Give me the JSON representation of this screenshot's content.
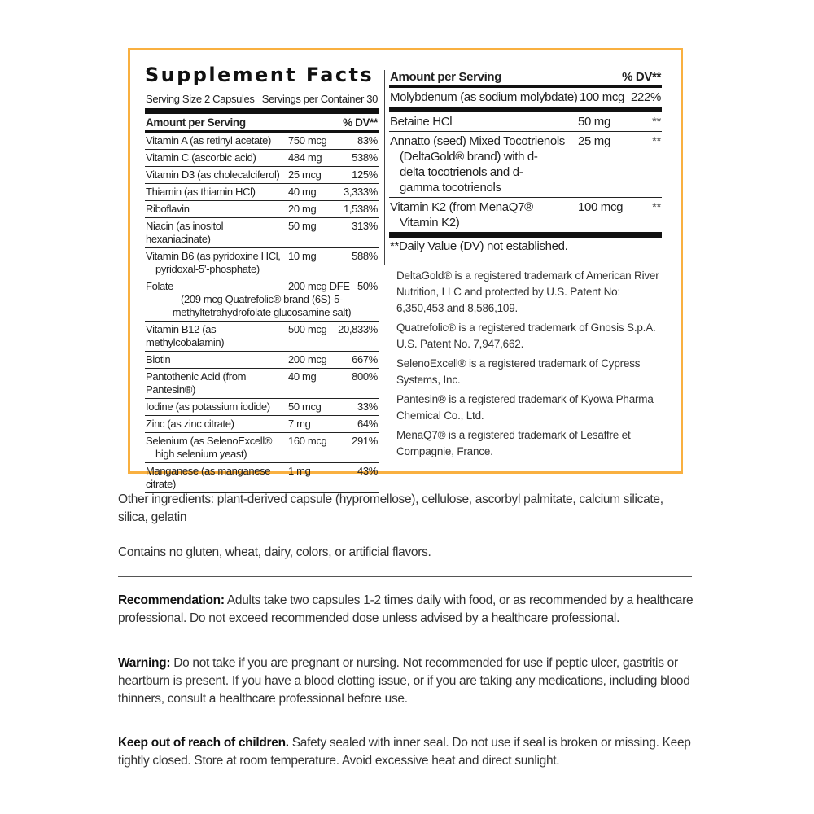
{
  "panel": {
    "title": "Supplement Facts",
    "serving_size": "Serving Size 2 Capsules",
    "servings_per_container": "Servings per Container 30",
    "amount_header": "Amount per Serving",
    "dv_header": "% DV**",
    "border_color": "#f9b040"
  },
  "left_rows": [
    {
      "name": "Vitamin A (as retinyl acetate)",
      "amount": "750 mcg",
      "dv": "83%"
    },
    {
      "name": "Vitamin C (ascorbic acid)",
      "amount": "484 mg",
      "dv": "538%"
    },
    {
      "name": "Vitamin D3 (as cholecalciferol)",
      "amount": "25 mcg",
      "dv": "125%"
    },
    {
      "name": "Thiamin (as thiamin HCl)",
      "amount": "40 mg",
      "dv": "3,333%"
    },
    {
      "name": "Riboflavin",
      "amount": "20 mg",
      "dv": "1,538%"
    },
    {
      "name": "Niacin (as inositol hexaniacinate)",
      "amount": "50 mg",
      "dv": "313%"
    },
    {
      "name": "Vitamin B6 (as pyridoxine HCl,",
      "sub": "pyridoxal-5’-phosphate)",
      "amount": "10 mg",
      "dv": "588%"
    },
    {
      "name": "Folate",
      "amount": "200 mcg DFE",
      "dv": "50%",
      "sub_center": "(209 mcg Quatrefolic® brand (6S)-5-methyltetrahydrofolate glucosamine salt)"
    },
    {
      "name": "Vitamin B12 (as methylcobalamin)",
      "amount": "500 mcg",
      "dv": "20,833%"
    },
    {
      "name": "Biotin",
      "amount": "200 mcg",
      "dv": "667%"
    },
    {
      "name": "Pantothenic Acid (from Pantesin®)",
      "amount": "40 mg",
      "dv": "800%"
    },
    {
      "name": "Iodine (as potassium iodide)",
      "amount": "50 mcg",
      "dv": "33%"
    },
    {
      "name": "Zinc (as zinc citrate)",
      "amount": "7 mg",
      "dv": "64%"
    },
    {
      "name": "Selenium (as SelenoExcell®",
      "sub": "high selenium yeast)",
      "amount": "160 mcg",
      "dv": "291%"
    },
    {
      "name": "Manganese (as manganese citrate)",
      "amount": "1 mg",
      "dv": "43%"
    }
  ],
  "right": {
    "amount_header": "Amount per Serving",
    "dv_header": "% DV**",
    "molybdenum": {
      "name": "Molybdenum (as sodium molybdate)",
      "amount": "100 mcg",
      "dv": "222%"
    },
    "rows": [
      {
        "name": "Betaine HCl",
        "amount": "50 mg",
        "dv": "**"
      },
      {
        "name": "Annatto (seed) Mixed Tocotrienols",
        "sub": "(DeltaGold® brand) with d-delta tocotrienols and d-gamma tocotrienols",
        "amount": "25 mg",
        "dv": "**"
      },
      {
        "name": "Vitamin K2 (from MenaQ7®",
        "sub": "Vitamin K2)",
        "amount": "100 mcg",
        "dv": "**"
      }
    ],
    "footnote": "**Daily Value (DV) not established."
  },
  "notes": [
    "DeltaGold® is a registered trademark of American River Nutrition, LLC and protected by U.S. Patent No: 6,350,453 and 8,586,109.",
    "Quatrefolic® is a registered trademark of Gnosis S.p.A. U.S. Patent No. 7,947,662.",
    "SelenoExcell® is a registered trademark of Cypress Systems, Inc.",
    "Pantesin® is a registered trademark of Kyowa Pharma Chemical Co., Ltd.",
    "MenaQ7® is a registered trademark of Lesaffre et Compagnie, France."
  ],
  "other_ingredients": "Other ingredients: plant-derived capsule (hypromellose), cellulose, ascorbyl palmitate, calcium silicate, silica, gelatin",
  "contains": "Contains no gluten, wheat, dairy, colors, or artificial flavors.",
  "recommendation": {
    "label": "Recommendation:",
    "text": " Adults take two capsules 1-2 times daily with food, or as recommended by a healthcare professional. Do not exceed recommended dose unless advised by a healthcare professional."
  },
  "warning": {
    "label": "Warning:",
    "text": " Do not take if you are pregnant or nursing. Not recommended for use if peptic ulcer, gastritis or heartburn is present. If you have a blood clotting issue, or if you are taking any medications, including blood thinners, consult a healthcare professional before use."
  },
  "keep_out": {
    "label": "Keep out of reach of children.",
    "text": " Safety sealed with inner seal. Do not use if seal is broken or missing. Keep tightly closed. Store at room temperature. Avoid excessive heat and direct sunlight."
  }
}
